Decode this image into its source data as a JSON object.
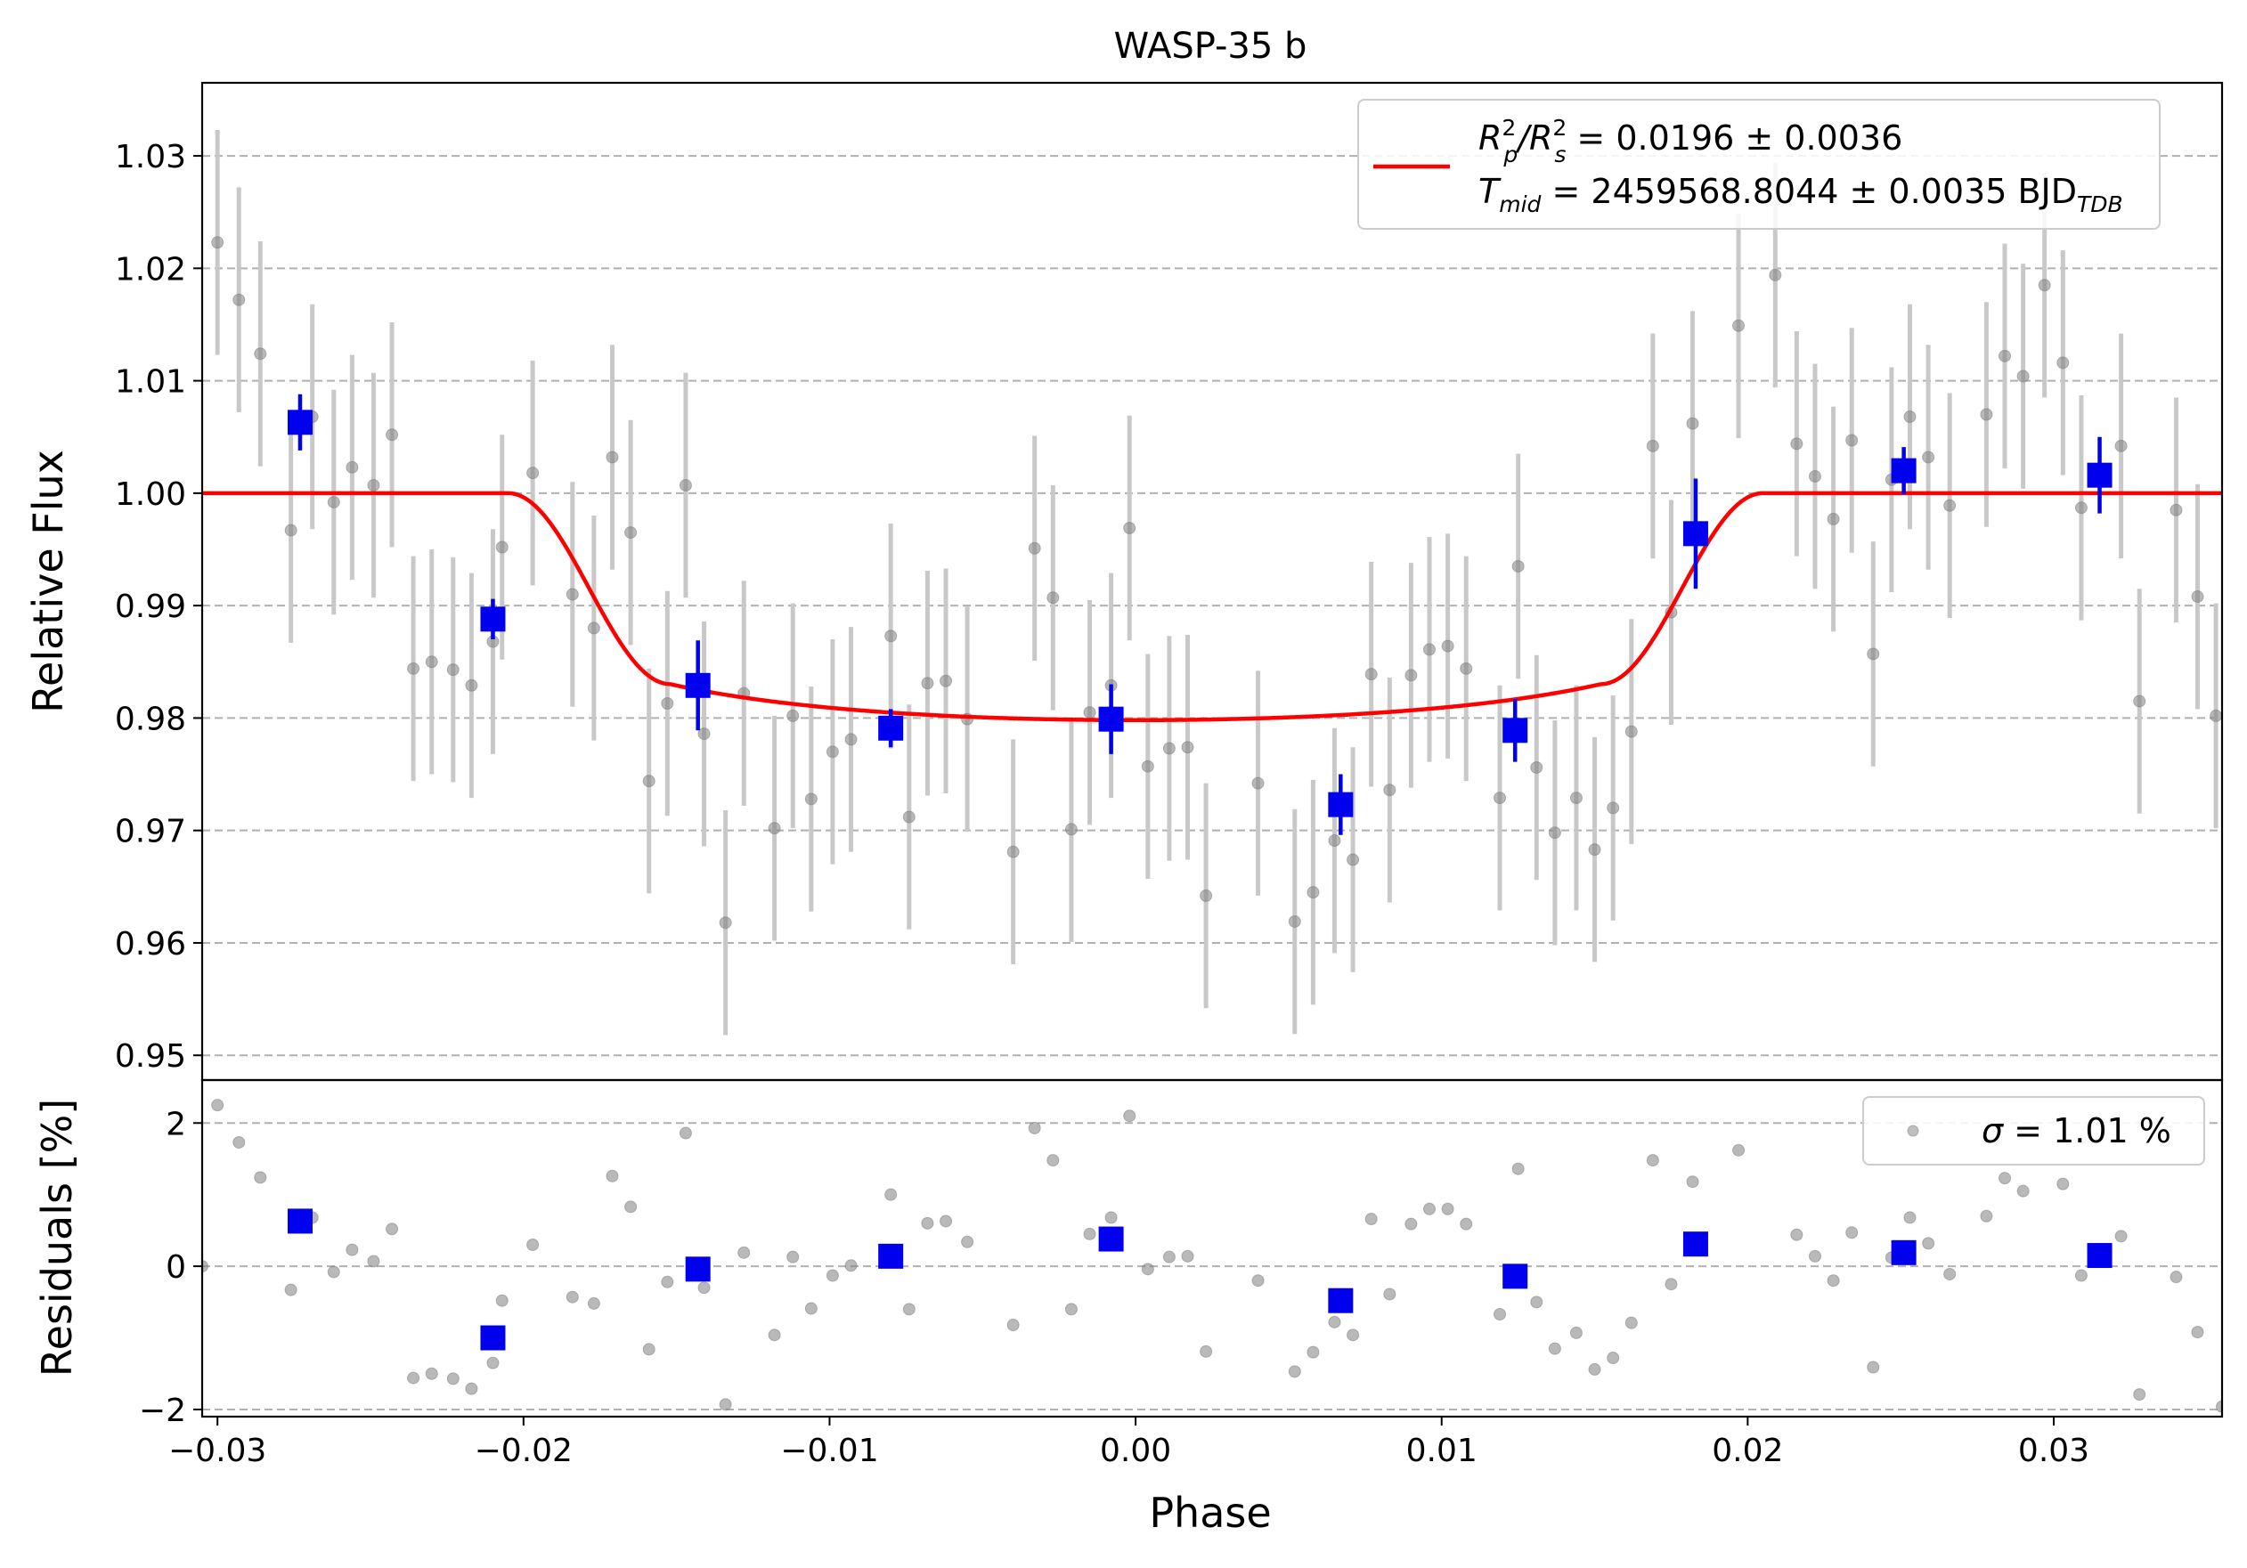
{
  "chart_data": [
    {
      "panel": "light-curve",
      "type": "scatter",
      "title": "WASP-35 b",
      "xlabel": "Phase",
      "ylabel": "Relative Flux",
      "xlim": [
        -0.0305,
        0.0355
      ],
      "ylim": [
        0.9478,
        1.0365
      ],
      "grid": "horizontal dashed",
      "xticks": [
        -0.03,
        -0.02,
        -0.01,
        0.0,
        0.01,
        0.02,
        0.03
      ],
      "xtick_labels": [
        "−0.03",
        "−0.02",
        "−0.01",
        "0.00",
        "0.01",
        "0.02",
        "0.03"
      ],
      "yticks": [
        0.95,
        0.96,
        0.97,
        0.98,
        0.99,
        1.0,
        1.01,
        1.02,
        1.03
      ],
      "ytick_labels": [
        "0.95",
        "0.96",
        "0.97",
        "0.98",
        "0.99",
        "1.00",
        "1.01",
        "1.02",
        "1.03"
      ],
      "legend": {
        "placement": "top-right",
        "line1_a": "R",
        "line1_a_sup": "2",
        "line1_a_sub": "p",
        "line1_b": "/R",
        "line1_b_sup": "2",
        "line1_b_sub": "s",
        "line1_c": " = 0.0196 ± 0.0036",
        "line2_a": "T",
        "line2_a_sub": "mid",
        "line2_b": " = 2459568.8044 ± 0.0035 BJD",
        "line2_b_sub": "TDB"
      },
      "colors": {
        "raw": "#808080",
        "raw_err": "#c8c8c8",
        "binned": "#0000ee",
        "model": "#ff0000",
        "grid": "#b0b0b0"
      },
      "transit_model": {
        "depth": 0.0196,
        "t_total_half": 0.0205,
        "t_ingress_end": 0.0152,
        "limb_darkening": [
          0.4,
          0.25
        ]
      },
      "raw_error": 0.01,
      "raw_points": [
        [
          -0.03,
          1.0223
        ],
        [
          -0.0293,
          1.0172
        ],
        [
          -0.0286,
          1.0124
        ],
        [
          -0.0276,
          0.9967
        ],
        [
          -0.0269,
          1.0068
        ],
        [
          -0.0262,
          0.9992
        ],
        [
          -0.0256,
          1.0023
        ],
        [
          -0.0249,
          1.0007
        ],
        [
          -0.0243,
          1.0052
        ],
        [
          -0.0236,
          0.9844
        ],
        [
          -0.023,
          0.985
        ],
        [
          -0.0223,
          0.9843
        ],
        [
          -0.0217,
          0.9829
        ],
        [
          -0.021,
          0.9868
        ],
        [
          -0.0207,
          0.9952
        ],
        [
          -0.0197,
          1.0018
        ],
        [
          -0.0184,
          0.991
        ],
        [
          -0.0177,
          0.988
        ],
        [
          -0.0171,
          1.0032
        ],
        [
          -0.0165,
          0.9965
        ],
        [
          -0.0159,
          0.9744
        ],
        [
          -0.0153,
          0.9813
        ],
        [
          -0.0147,
          1.0007
        ],
        [
          -0.0141,
          0.9786
        ],
        [
          -0.0134,
          0.9618
        ],
        [
          -0.0128,
          0.9822
        ],
        [
          -0.0118,
          0.9702
        ],
        [
          -0.0112,
          0.9802
        ],
        [
          -0.0106,
          0.9728
        ],
        [
          -0.0099,
          0.977
        ],
        [
          -0.0093,
          0.9781
        ],
        [
          -0.008,
          0.9873
        ],
        [
          -0.0074,
          0.9712
        ],
        [
          -0.0068,
          0.9831
        ],
        [
          -0.0062,
          0.9833
        ],
        [
          -0.0055,
          0.9799
        ],
        [
          -0.004,
          0.9681
        ],
        [
          -0.0033,
          0.9951
        ],
        [
          -0.0027,
          0.9907
        ],
        [
          -0.0021,
          0.9701
        ],
        [
          -0.0015,
          0.9805
        ],
        [
          -0.0008,
          0.9829
        ],
        [
          -0.0002,
          0.9969
        ],
        [
          0.0004,
          0.9757
        ],
        [
          0.0011,
          0.9773
        ],
        [
          0.0017,
          0.9774
        ],
        [
          0.0023,
          0.9642
        ],
        [
          0.004,
          0.9742
        ],
        [
          0.0052,
          0.9619
        ],
        [
          0.0058,
          0.9645
        ],
        [
          0.0065,
          0.9691
        ],
        [
          0.0071,
          0.9674
        ],
        [
          0.0077,
          0.9839
        ],
        [
          0.0083,
          0.9736
        ],
        [
          0.009,
          0.9838
        ],
        [
          0.0096,
          0.9861
        ],
        [
          0.0102,
          0.9864
        ],
        [
          0.0108,
          0.9844
        ],
        [
          0.0119,
          0.9729
        ],
        [
          0.0125,
          0.9935
        ],
        [
          0.0131,
          0.9756
        ],
        [
          0.0137,
          0.9698
        ],
        [
          0.0144,
          0.9729
        ],
        [
          0.015,
          0.9683
        ],
        [
          0.0156,
          0.972
        ],
        [
          0.0162,
          0.9788
        ],
        [
          0.0169,
          1.0042
        ],
        [
          0.0175,
          0.9894
        ],
        [
          0.0182,
          1.0062
        ],
        [
          0.0197,
          1.0149
        ],
        [
          0.0209,
          1.0194
        ],
        [
          0.0216,
          1.0044
        ],
        [
          0.0222,
          1.0015
        ],
        [
          0.0228,
          0.9977
        ],
        [
          0.0234,
          1.0047
        ],
        [
          0.0241,
          0.9857
        ],
        [
          0.0247,
          1.0012
        ],
        [
          0.0253,
          1.0068
        ],
        [
          0.0259,
          1.0032
        ],
        [
          0.0266,
          0.9989
        ],
        [
          0.0278,
          1.007
        ],
        [
          0.0284,
          1.0122
        ],
        [
          0.029,
          1.0104
        ],
        [
          0.0297,
          1.0185
        ],
        [
          0.0303,
          1.0116
        ],
        [
          0.0309,
          0.9987
        ],
        [
          0.0322,
          1.0042
        ],
        [
          0.0328,
          0.9815
        ],
        [
          0.034,
          0.9985
        ],
        [
          0.0347,
          0.9908
        ],
        [
          0.0353,
          0.9802
        ]
      ],
      "binned_points": [
        [
          -0.0273,
          1.0063,
          0.0025
        ],
        [
          -0.021,
          0.9888,
          0.0018
        ],
        [
          -0.0143,
          0.9829,
          0.004
        ],
        [
          -0.008,
          0.9791,
          0.0017
        ],
        [
          -0.0008,
          0.9799,
          0.0031
        ],
        [
          0.0067,
          0.9723,
          0.0027
        ],
        [
          0.0124,
          0.9789,
          0.0028
        ],
        [
          0.0183,
          0.9964,
          0.0049
        ],
        [
          0.0251,
          1.002,
          0.0021
        ],
        [
          0.0315,
          1.0016,
          0.0034
        ]
      ]
    },
    {
      "panel": "residuals",
      "type": "scatter",
      "xlabel": "Phase",
      "ylabel": "Residuals [%]",
      "xlim": [
        -0.0305,
        0.0355
      ],
      "ylim": [
        -2.1,
        2.6
      ],
      "grid": "horizontal dashed",
      "yticks": [
        -2,
        0,
        2
      ],
      "ytick_labels": [
        "−2",
        "0",
        "2"
      ],
      "legend": {
        "placement": "top-right",
        "sigma_symbol": "σ",
        "text": " = 1.01 %"
      },
      "raw_points": [
        [
          -0.0305,
          0.0
        ],
        [
          -0.03,
          2.25
        ],
        [
          -0.0293,
          1.73
        ],
        [
          -0.0286,
          1.24
        ],
        [
          -0.0276,
          -0.33
        ],
        [
          -0.0269,
          0.68
        ],
        [
          -0.0262,
          -0.08
        ],
        [
          -0.0256,
          0.23
        ],
        [
          -0.0249,
          0.07
        ],
        [
          -0.0243,
          0.52
        ],
        [
          -0.0236,
          -1.56
        ],
        [
          -0.023,
          -1.5
        ],
        [
          -0.0223,
          -1.57
        ],
        [
          -0.0217,
          -1.71
        ],
        [
          -0.021,
          -1.35
        ],
        [
          -0.0207,
          -0.48
        ],
        [
          -0.0197,
          0.3
        ],
        [
          -0.0184,
          -0.43
        ],
        [
          -0.0177,
          -0.52
        ],
        [
          -0.0171,
          1.26
        ],
        [
          -0.0165,
          0.83
        ],
        [
          -0.0159,
          -1.16
        ],
        [
          -0.0153,
          -0.22
        ],
        [
          -0.0147,
          1.86
        ],
        [
          -0.0141,
          -0.3
        ],
        [
          -0.0134,
          -1.93
        ],
        [
          -0.0128,
          0.19
        ],
        [
          -0.0118,
          -0.96
        ],
        [
          -0.0112,
          0.13
        ],
        [
          -0.0106,
          -0.59
        ],
        [
          -0.0099,
          -0.13
        ],
        [
          -0.0093,
          0.01
        ],
        [
          -0.008,
          1.0
        ],
        [
          -0.0074,
          -0.6
        ],
        [
          -0.0068,
          0.6
        ],
        [
          -0.0062,
          0.63
        ],
        [
          -0.0055,
          0.34
        ],
        [
          -0.004,
          -0.82
        ],
        [
          -0.0033,
          1.93
        ],
        [
          -0.0027,
          1.48
        ],
        [
          -0.0021,
          -0.6
        ],
        [
          -0.0015,
          0.45
        ],
        [
          -0.0008,
          0.68
        ],
        [
          -0.0002,
          2.1
        ],
        [
          0.0004,
          -0.04
        ],
        [
          0.0011,
          0.13
        ],
        [
          0.0017,
          0.14
        ],
        [
          0.0023,
          -1.19
        ],
        [
          0.004,
          -0.2
        ],
        [
          0.0052,
          -1.47
        ],
        [
          0.0058,
          -1.2
        ],
        [
          0.0065,
          -0.78
        ],
        [
          0.0071,
          -0.96
        ],
        [
          0.0077,
          0.66
        ],
        [
          0.0083,
          -0.39
        ],
        [
          0.009,
          0.59
        ],
        [
          0.0096,
          0.8
        ],
        [
          0.0102,
          0.8
        ],
        [
          0.0108,
          0.59
        ],
        [
          0.0119,
          -0.67
        ],
        [
          0.0125,
          1.36
        ],
        [
          0.0131,
          -0.5
        ],
        [
          0.0137,
          -1.15
        ],
        [
          0.0144,
          -0.93
        ],
        [
          0.015,
          -1.44
        ],
        [
          0.0156,
          -1.28
        ],
        [
          0.0162,
          -0.79
        ],
        [
          0.0169,
          1.48
        ],
        [
          0.0175,
          -0.25
        ],
        [
          0.0182,
          1.18
        ],
        [
          0.0197,
          1.62
        ],
        [
          0.0216,
          0.44
        ],
        [
          0.0222,
          0.14
        ],
        [
          0.0228,
          -0.2
        ],
        [
          0.0234,
          0.47
        ],
        [
          0.0241,
          -1.41
        ],
        [
          0.0247,
          0.12
        ],
        [
          0.0253,
          0.68
        ],
        [
          0.0259,
          0.32
        ],
        [
          0.0266,
          -0.11
        ],
        [
          0.0278,
          0.7
        ],
        [
          0.0284,
          1.23
        ],
        [
          0.029,
          1.05
        ],
        [
          0.0303,
          1.15
        ],
        [
          0.0309,
          -0.13
        ],
        [
          0.0322,
          0.42
        ],
        [
          0.0328,
          -1.79
        ],
        [
          0.034,
          -0.15
        ],
        [
          0.0347,
          -0.92
        ],
        [
          0.0355,
          -1.96
        ]
      ],
      "binned_points": [
        [
          -0.0273,
          0.63
        ],
        [
          -0.021,
          -1.0
        ],
        [
          -0.0143,
          -0.04
        ],
        [
          -0.008,
          0.14
        ],
        [
          -0.0008,
          0.38
        ],
        [
          0.0067,
          -0.48
        ],
        [
          0.0124,
          -0.14
        ],
        [
          0.0183,
          0.31
        ],
        [
          0.0251,
          0.19
        ],
        [
          0.0315,
          0.15
        ]
      ]
    }
  ]
}
